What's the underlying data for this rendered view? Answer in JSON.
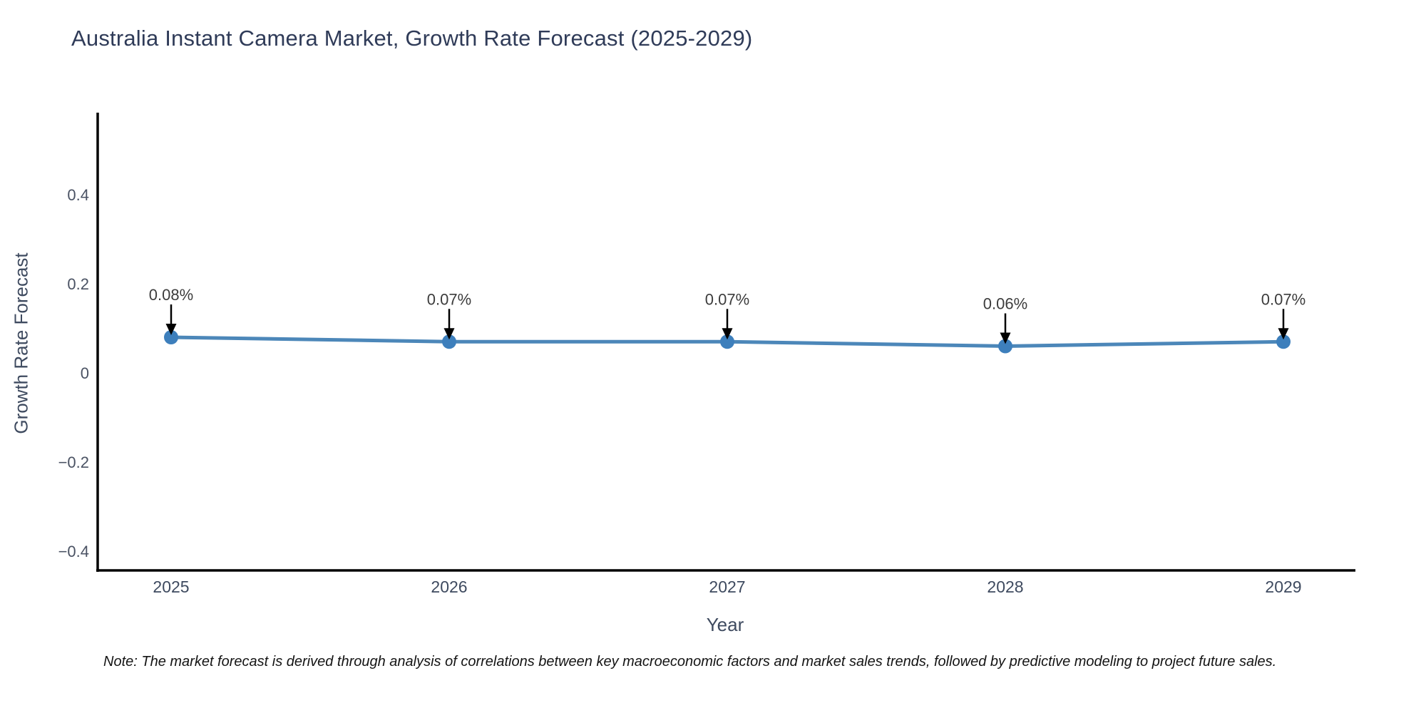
{
  "page": {
    "background": "#ffffff"
  },
  "chart_data": {
    "type": "line",
    "title": "Australia Instant Camera Market, Growth Rate Forecast (2025-2029)",
    "xlabel": "Year",
    "ylabel": "Growth Rate Forecast",
    "categories": [
      "2025",
      "2026",
      "2027",
      "2028",
      "2029"
    ],
    "series": [
      {
        "name": "Growth Rate Forecast",
        "values": [
          0.08,
          0.07,
          0.07,
          0.06,
          0.07
        ]
      }
    ],
    "point_labels": [
      "0.08%",
      "0.07%",
      "0.07%",
      "0.06%",
      "0.07%"
    ],
    "yticks": {
      "values": [
        0.4,
        0.2,
        0,
        -0.2,
        -0.4
      ],
      "labels": [
        "0.4",
        "0.2",
        "0",
        "−0.2",
        "−0.4"
      ]
    },
    "ylim": [
      -0.45,
      0.58
    ],
    "grid": false,
    "legend": "none",
    "annotation_style": "value-label-with-down-arrow",
    "colors": {
      "line": "#4c87b9",
      "marker": "#3d7fbc",
      "arrow": "#000000",
      "data_label": "#3c3c3c",
      "axis_line": "#000000",
      "title": "#2f3b58",
      "axis_title": "#3e4a5f",
      "tick_label": "#4a5263",
      "note": "#141414"
    },
    "note": "Note: The market forecast is derived through analysis of correlations between key macroeconomic factors and market sales trends, followed by predictive modeling to project future sales."
  }
}
